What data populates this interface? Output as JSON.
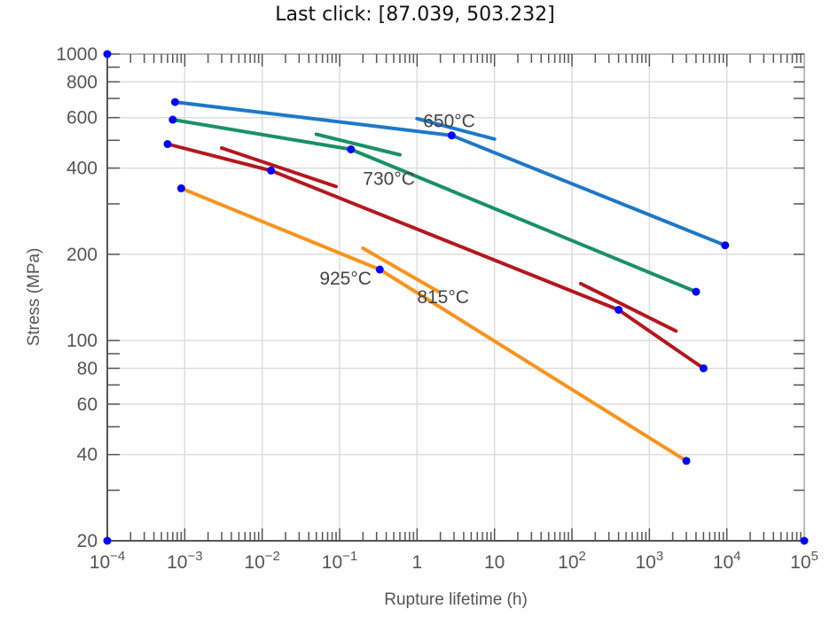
{
  "header": {
    "last_click_label": "Last click: [87.039, 503.232]"
  },
  "chart_data": {
    "type": "line",
    "xlabel": "Rupture lifetime (h)",
    "ylabel": "Stress (MPa)",
    "xscale": "log",
    "yscale": "log",
    "xlim": [
      0.0001,
      100000
    ],
    "ylim": [
      20,
      1000
    ],
    "grid": true,
    "x_ticks": [
      {
        "v": 0.0001,
        "base": "10",
        "exp": "−4"
      },
      {
        "v": 0.001,
        "base": "10",
        "exp": "−3"
      },
      {
        "v": 0.01,
        "base": "10",
        "exp": "−2"
      },
      {
        "v": 0.1,
        "base": "10",
        "exp": "−1"
      },
      {
        "v": 1,
        "base": "1",
        "exp": ""
      },
      {
        "v": 10,
        "base": "10",
        "exp": ""
      },
      {
        "v": 100,
        "base": "10",
        "exp": "2"
      },
      {
        "v": 1000,
        "base": "10",
        "exp": "3"
      },
      {
        "v": 10000,
        "base": "10",
        "exp": "4"
      },
      {
        "v": 100000,
        "base": "10",
        "exp": "5"
      }
    ],
    "y_ticks": [
      20,
      40,
      60,
      80,
      100,
      200,
      400,
      600,
      800,
      1000
    ],
    "series": [
      {
        "name": "650°C",
        "color": "#1f78c8",
        "points": [
          [
            0.00075,
            680
          ],
          [
            2.8,
            520
          ],
          [
            9500,
            215
          ]
        ]
      },
      {
        "name": "730°C",
        "color": "#1a9068",
        "points": [
          [
            0.0007,
            590
          ],
          [
            0.14,
            465
          ],
          [
            4000,
            148
          ]
        ]
      },
      {
        "name": "815°C",
        "color": "#b3181e",
        "points": [
          [
            0.0006,
            485
          ],
          [
            0.013,
            392
          ],
          [
            400,
            128
          ],
          [
            5000,
            80
          ]
        ]
      },
      {
        "name": "925°C",
        "color": "#f7941d",
        "points": [
          [
            0.0009,
            340
          ],
          [
            0.33,
            177
          ],
          [
            3000,
            38
          ]
        ]
      }
    ],
    "segments": [
      {
        "series": "650°C",
        "points": [
          [
            1.0,
            595
          ],
          [
            10,
            505
          ]
        ]
      },
      {
        "series": "730°C",
        "points": [
          [
            0.05,
            525
          ],
          [
            0.6,
            445
          ]
        ]
      },
      {
        "series": "815°C",
        "points": [
          [
            0.003,
            470
          ],
          [
            0.09,
            345
          ]
        ]
      },
      {
        "series": "815°C",
        "points": [
          [
            130,
            158
          ],
          [
            2200,
            108
          ]
        ]
      },
      {
        "series": "925°C",
        "points": [
          [
            0.2,
            210
          ],
          [
            1.9,
            148
          ]
        ]
      }
    ],
    "annotations": [
      {
        "text": "650°C",
        "x": 1.2,
        "y": 555
      },
      {
        "text": "730°C",
        "x": 0.2,
        "y": 350
      },
      {
        "text": "925°C",
        "x": 0.055,
        "y": 157
      },
      {
        "text": "815°C",
        "x": 1.0,
        "y": 135
      }
    ],
    "markers": [
      [
        0.0001,
        1000
      ],
      [
        0.0001,
        20
      ],
      [
        100000,
        20
      ],
      [
        0.00075,
        680
      ],
      [
        0.0007,
        590
      ],
      [
        0.0006,
        485
      ],
      [
        0.0009,
        340
      ],
      [
        2.8,
        520
      ],
      [
        0.14,
        465
      ],
      [
        0.013,
        392
      ],
      [
        0.33,
        177
      ],
      [
        9500,
        215
      ],
      [
        4000,
        148
      ],
      [
        400,
        128
      ],
      [
        5000,
        80
      ],
      [
        3000,
        38
      ]
    ],
    "marker_color": "#0000ff"
  }
}
